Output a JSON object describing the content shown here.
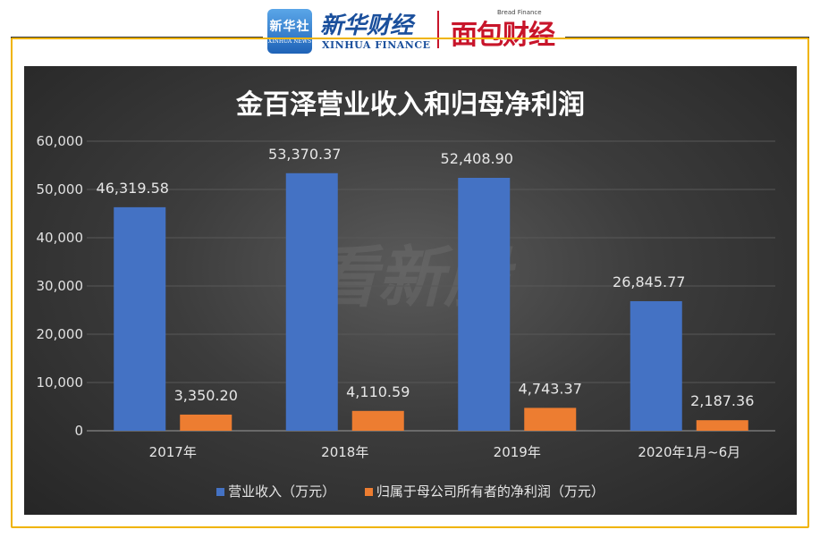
{
  "header": {
    "logo_box_text": "新华社",
    "logo_box_sub": "XINHUA NEWS",
    "brand_cn": "新华财经",
    "brand_en": "XINHUA FINANCE",
    "brand2": "面包财经",
    "brand2_small": "Bread Finance",
    "watermark": "看新股"
  },
  "colors": {
    "revenue": "#4472c4",
    "profit": "#ed7d31",
    "frame": "#f0b400",
    "background": "#3c3c3c"
  },
  "chart_data": {
    "type": "bar",
    "title": "金百泽营业收入和归母净利润",
    "categories": [
      "2017年",
      "2018年",
      "2019年",
      "2020年1月~6月"
    ],
    "series": [
      {
        "name": "营业收入（万元）",
        "values": [
          46319.58,
          53370.37,
          52408.9,
          26845.77
        ],
        "labels": [
          "46,319.58",
          "53,370.37",
          "52,408.90",
          "26,845.77"
        ]
      },
      {
        "name": "归属于母公司所有者的净利润（万元）",
        "values": [
          3350.2,
          4110.59,
          4743.37,
          2187.36
        ],
        "labels": [
          "3,350.20",
          "4,110.59",
          "4,743.37",
          "2,187.36"
        ]
      }
    ],
    "yticks": [
      "0",
      "10,000",
      "20,000",
      "30,000",
      "40,000",
      "50,000",
      "60,000"
    ],
    "ylim": [
      0,
      60000
    ],
    "grid": true,
    "legend": "bottom"
  }
}
